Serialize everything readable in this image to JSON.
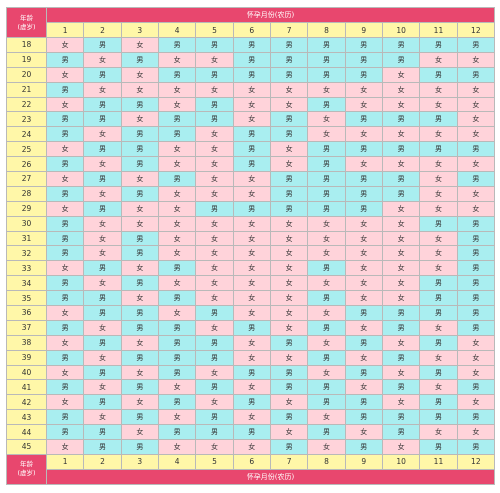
{
  "header": {
    "age_label": "年龄",
    "age_sub_label": "(虚岁)",
    "month_title": "怀孕月份(农历)"
  },
  "months": [
    "1",
    "2",
    "3",
    "4",
    "5",
    "6",
    "7",
    "8",
    "9",
    "10",
    "11",
    "12"
  ],
  "rows": [
    {
      "age": "18",
      "cells": [
        "女",
        "男",
        "女",
        "男",
        "男",
        "男",
        "男",
        "男",
        "男",
        "男",
        "男",
        "男"
      ]
    },
    {
      "age": "19",
      "cells": [
        "男",
        "女",
        "男",
        "女",
        "女",
        "男",
        "男",
        "男",
        "男",
        "男",
        "女",
        "女"
      ]
    },
    {
      "age": "20",
      "cells": [
        "女",
        "男",
        "女",
        "男",
        "男",
        "男",
        "男",
        "男",
        "男",
        "女",
        "男",
        "男"
      ]
    },
    {
      "age": "21",
      "cells": [
        "男",
        "女",
        "女",
        "女",
        "女",
        "女",
        "女",
        "女",
        "女",
        "女",
        "女",
        "女"
      ]
    },
    {
      "age": "22",
      "cells": [
        "女",
        "男",
        "男",
        "女",
        "男",
        "女",
        "女",
        "男",
        "女",
        "女",
        "女",
        "女"
      ]
    },
    {
      "age": "23",
      "cells": [
        "男",
        "男",
        "女",
        "男",
        "男",
        "女",
        "男",
        "女",
        "男",
        "男",
        "男",
        "女"
      ]
    },
    {
      "age": "24",
      "cells": [
        "男",
        "女",
        "男",
        "男",
        "女",
        "男",
        "男",
        "女",
        "女",
        "女",
        "女",
        "女"
      ]
    },
    {
      "age": "25",
      "cells": [
        "女",
        "男",
        "男",
        "女",
        "女",
        "男",
        "女",
        "男",
        "男",
        "男",
        "男",
        "男"
      ]
    },
    {
      "age": "26",
      "cells": [
        "男",
        "女",
        "男",
        "女",
        "女",
        "男",
        "女",
        "男",
        "女",
        "女",
        "女",
        "女"
      ]
    },
    {
      "age": "27",
      "cells": [
        "女",
        "男",
        "女",
        "男",
        "女",
        "女",
        "男",
        "男",
        "男",
        "男",
        "女",
        "男"
      ]
    },
    {
      "age": "28",
      "cells": [
        "男",
        "女",
        "男",
        "女",
        "女",
        "女",
        "男",
        "男",
        "男",
        "男",
        "女",
        "女"
      ]
    },
    {
      "age": "29",
      "cells": [
        "女",
        "男",
        "女",
        "女",
        "男",
        "男",
        "男",
        "男",
        "男",
        "女",
        "女",
        "女"
      ]
    },
    {
      "age": "30",
      "cells": [
        "男",
        "女",
        "女",
        "女",
        "女",
        "女",
        "女",
        "女",
        "女",
        "女",
        "男",
        "男"
      ]
    },
    {
      "age": "31",
      "cells": [
        "男",
        "女",
        "男",
        "女",
        "女",
        "女",
        "女",
        "女",
        "女",
        "女",
        "女",
        "男"
      ]
    },
    {
      "age": "32",
      "cells": [
        "男",
        "女",
        "男",
        "女",
        "女",
        "女",
        "女",
        "女",
        "女",
        "女",
        "女",
        "男"
      ]
    },
    {
      "age": "33",
      "cells": [
        "女",
        "男",
        "女",
        "男",
        "女",
        "女",
        "女",
        "男",
        "女",
        "女",
        "女",
        "男"
      ]
    },
    {
      "age": "34",
      "cells": [
        "男",
        "女",
        "男",
        "女",
        "女",
        "女",
        "女",
        "女",
        "女",
        "女",
        "男",
        "男"
      ]
    },
    {
      "age": "35",
      "cells": [
        "男",
        "男",
        "女",
        "男",
        "女",
        "女",
        "女",
        "男",
        "女",
        "女",
        "男",
        "男"
      ]
    },
    {
      "age": "36",
      "cells": [
        "女",
        "男",
        "男",
        "女",
        "男",
        "女",
        "女",
        "女",
        "男",
        "男",
        "男",
        "男"
      ]
    },
    {
      "age": "37",
      "cells": [
        "男",
        "女",
        "男",
        "男",
        "女",
        "男",
        "女",
        "男",
        "女",
        "男",
        "女",
        "男"
      ]
    },
    {
      "age": "38",
      "cells": [
        "女",
        "男",
        "女",
        "男",
        "男",
        "女",
        "男",
        "女",
        "男",
        "女",
        "男",
        "女"
      ]
    },
    {
      "age": "39",
      "cells": [
        "男",
        "女",
        "男",
        "男",
        "男",
        "女",
        "女",
        "男",
        "女",
        "男",
        "女",
        "女"
      ]
    },
    {
      "age": "40",
      "cells": [
        "女",
        "男",
        "女",
        "男",
        "女",
        "男",
        "男",
        "女",
        "男",
        "女",
        "男",
        "女"
      ]
    },
    {
      "age": "41",
      "cells": [
        "男",
        "女",
        "男",
        "女",
        "男",
        "女",
        "男",
        "男",
        "女",
        "男",
        "女",
        "男"
      ]
    },
    {
      "age": "42",
      "cells": [
        "女",
        "男",
        "女",
        "男",
        "女",
        "男",
        "女",
        "男",
        "男",
        "女",
        "男",
        "女"
      ]
    },
    {
      "age": "43",
      "cells": [
        "男",
        "女",
        "男",
        "女",
        "男",
        "女",
        "男",
        "女",
        "男",
        "男",
        "男",
        "男"
      ]
    },
    {
      "age": "44",
      "cells": [
        "男",
        "男",
        "女",
        "男",
        "男",
        "男",
        "女",
        "男",
        "女",
        "男",
        "女",
        "女"
      ]
    },
    {
      "age": "45",
      "cells": [
        "女",
        "男",
        "男",
        "女",
        "女",
        "女",
        "男",
        "女",
        "男",
        "女",
        "男",
        "男"
      ]
    }
  ],
  "colors": {
    "boy_cell": "#a9eef0",
    "girl_cell": "#ffd3da",
    "header_band": "#e8476e",
    "month_age_cell": "#fff7a8"
  }
}
